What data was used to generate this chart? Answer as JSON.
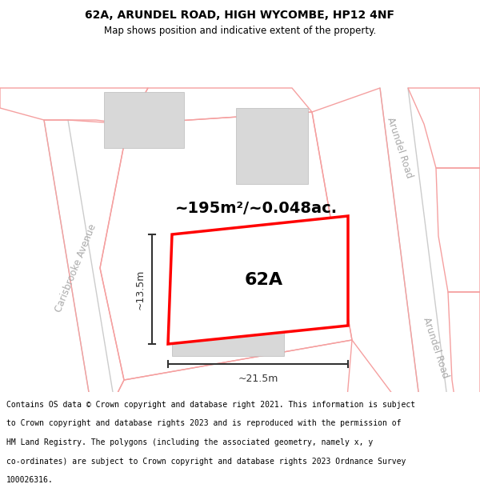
{
  "title_line1": "62A, ARUNDEL ROAD, HIGH WYCOMBE, HP12 4NF",
  "title_line2": "Map shows position and indicative extent of the property.",
  "area_text": "~195m²/~0.048ac.",
  "label_62A": "62A",
  "dim_width": "~21.5m",
  "dim_height": "~13.5m",
  "road_label_right1": "Arundel Road",
  "road_label_right2": "Arundel Road",
  "street_label_left": "Carisbrooke Avenue",
  "footer_lines": [
    "Contains OS data © Crown copyright and database right 2021. This information is subject",
    "to Crown copyright and database rights 2023 and is reproduced with the permission of",
    "HM Land Registry. The polygons (including the associated geometry, namely x, y",
    "co-ordinates) are subject to Crown copyright and database rights 2023 Ordnance Survey",
    "100026316."
  ],
  "bg_color": "#ffffff",
  "map_bg": "#ffffff",
  "plot_color": "#ff0000",
  "parcel_color": "#f5a0a0",
  "road_gray": "#cccccc",
  "building_fill": "#d8d8d8",
  "building_edge": "#bbbbbb",
  "road_label_color": "#aaaaaa",
  "dim_color": "#333333",
  "text_color": "#000000",
  "title_fontsize": 10,
  "subtitle_fontsize": 8.5,
  "area_fontsize": 14,
  "label_fontsize": 16,
  "dim_fontsize": 9,
  "footer_fontsize": 7
}
